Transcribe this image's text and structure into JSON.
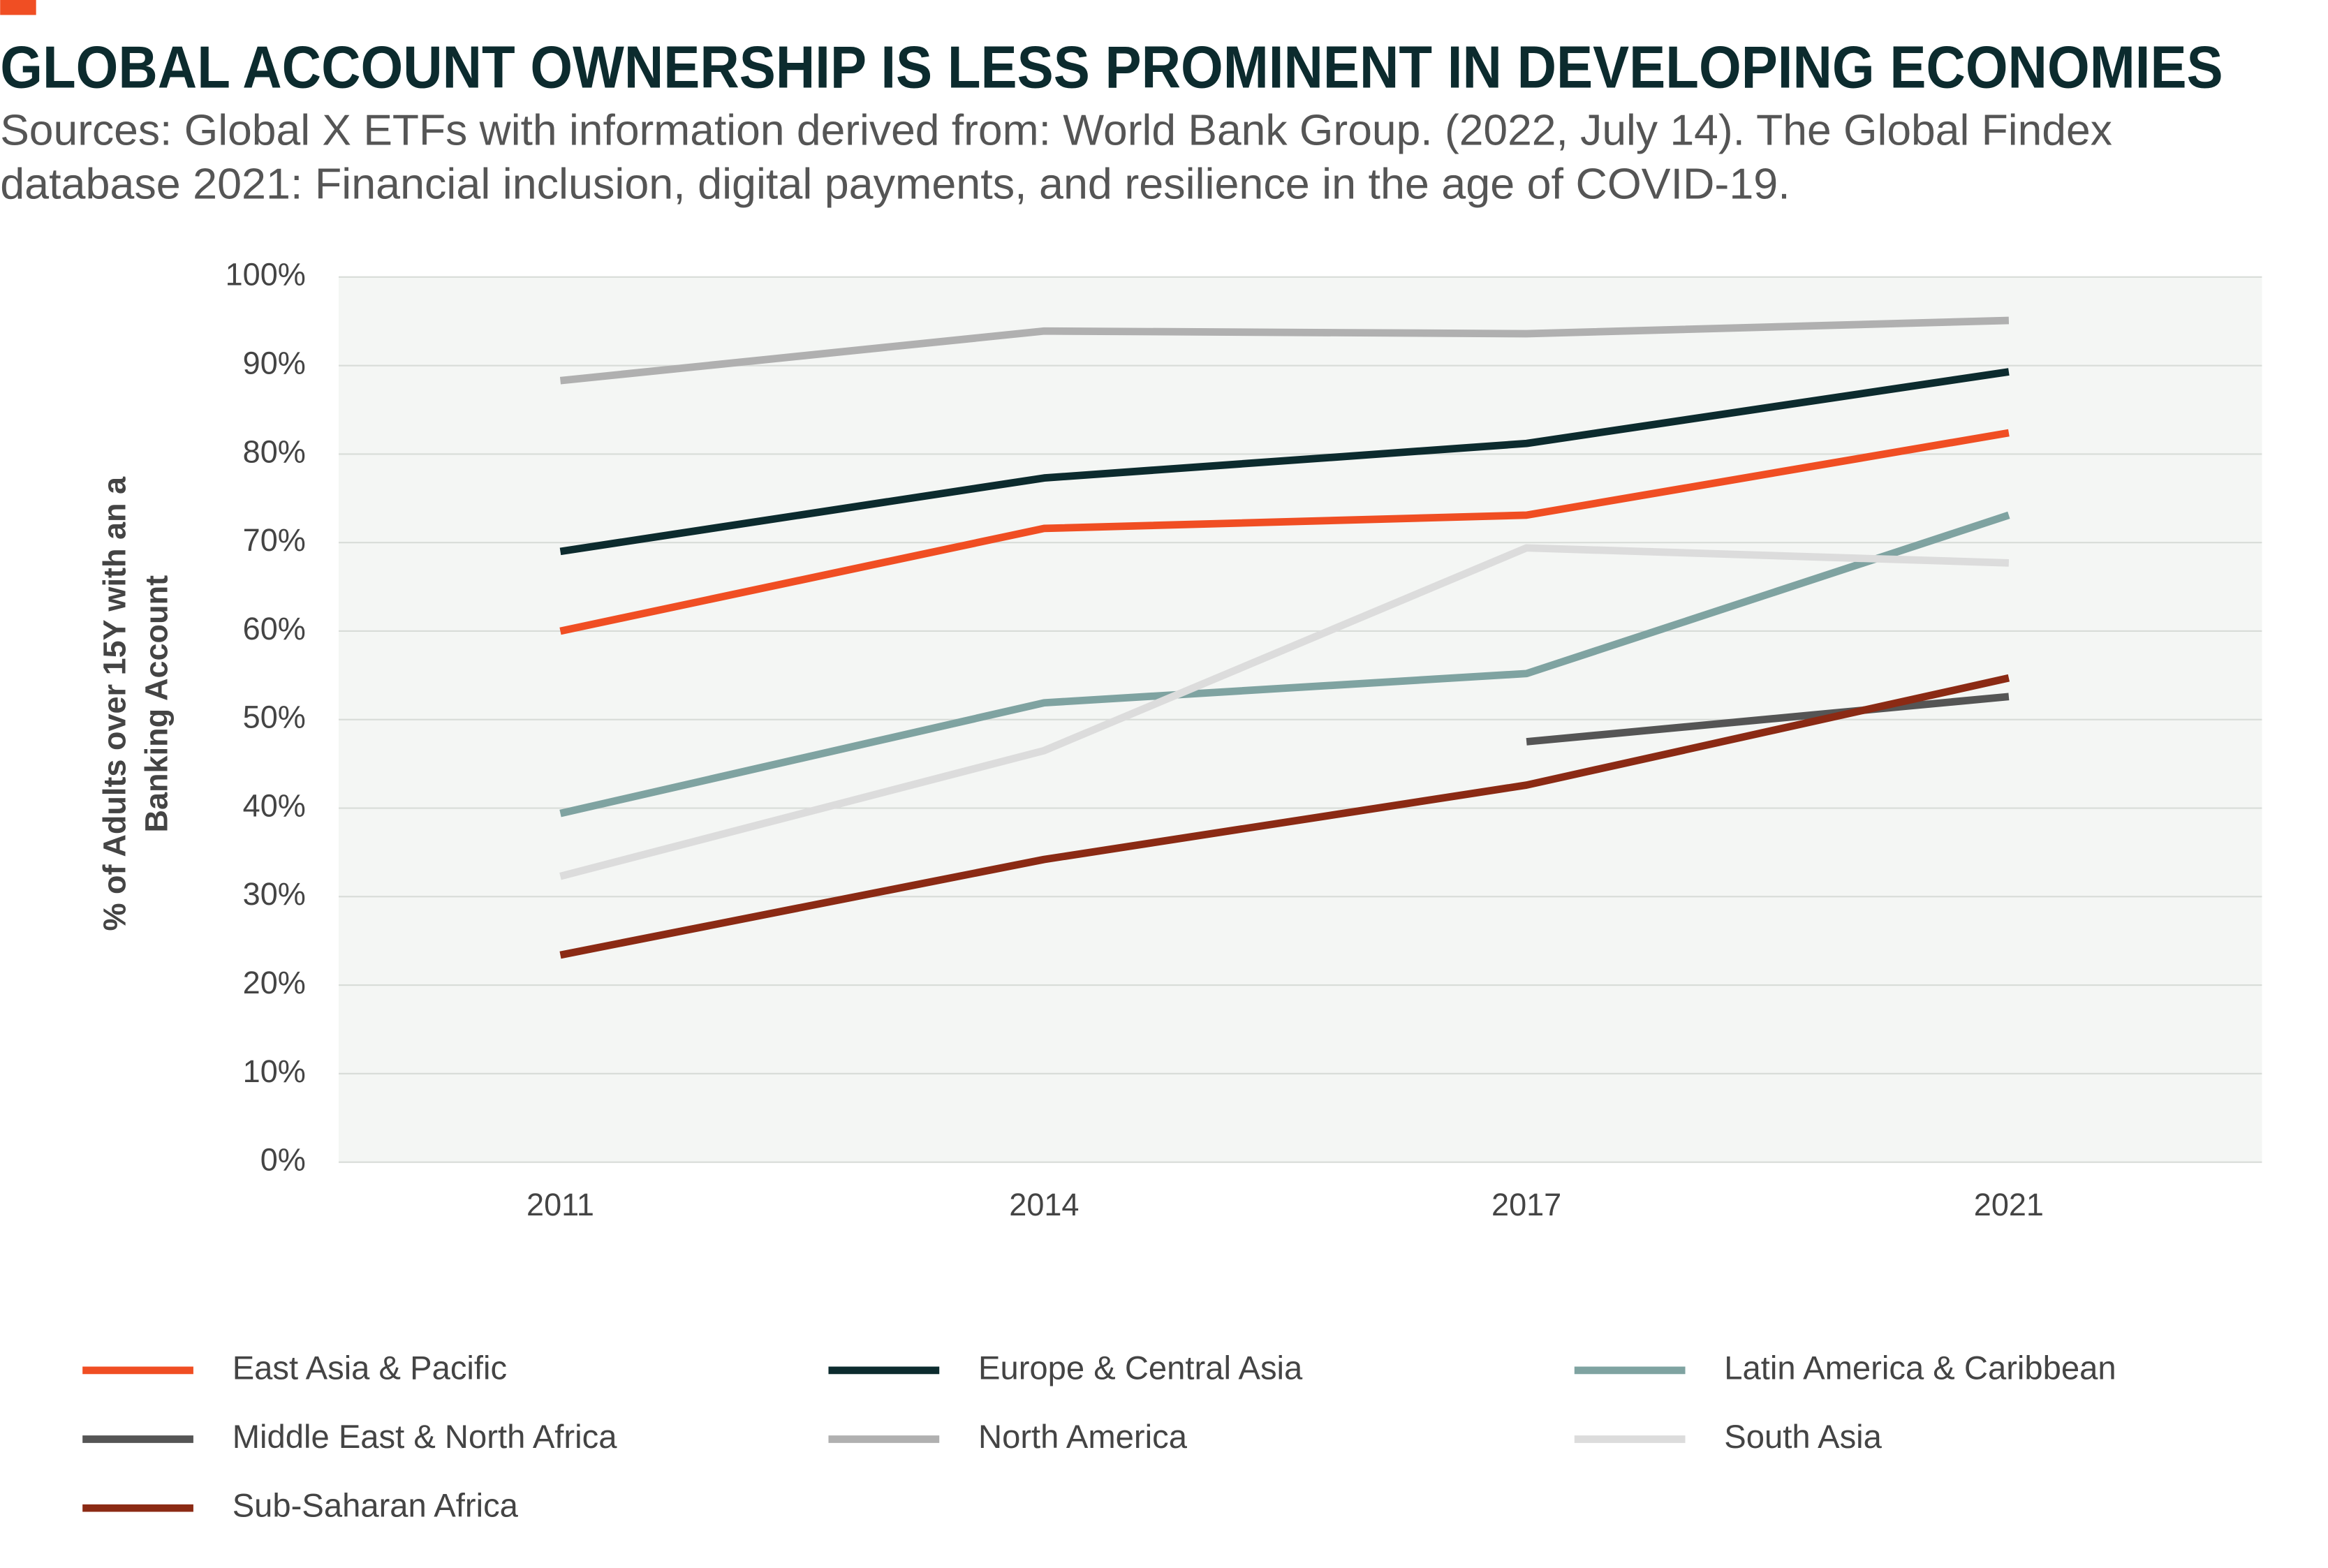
{
  "chart_data": {
    "type": "line",
    "title": "GLOBAL ACCOUNT OWNERSHIP IS LESS PROMINENT IN DEVELOPING ECONOMIES",
    "subtitle": [
      "Sources: Global X ETFs with information derived from: World Bank Group. (2022, July 14). The Global Findex",
      "database 2021: Financial inclusion, digital payments, and resilience in the age of COVID-19."
    ],
    "y_label": [
      "% of Adults over 15Y with an a",
      "Banking Account"
    ],
    "categories": [
      "2011",
      "2014",
      "2017",
      "2021"
    ],
    "ylim": [
      0,
      100
    ],
    "yticks": [
      {
        "value": 0,
        "label": "0%"
      },
      {
        "value": 10,
        "label": "10%"
      },
      {
        "value": 20,
        "label": "20%"
      },
      {
        "value": 30,
        "label": "30%"
      },
      {
        "value": 40,
        "label": "40%"
      },
      {
        "value": 50,
        "label": "50%"
      },
      {
        "value": 60,
        "label": "60%"
      },
      {
        "value": 70,
        "label": "70%"
      },
      {
        "value": 80,
        "label": "80%"
      },
      {
        "value": 90,
        "label": "90%"
      },
      {
        "value": 100,
        "label": "100%"
      }
    ],
    "grid": true,
    "legend": "bottom",
    "series": [
      {
        "name": "East Asia & Pacific",
        "color": "#f04e23",
        "values": [
          60,
          71.6,
          73.1,
          82.4
        ]
      },
      {
        "name": "Europe & Central Asia",
        "color": "#0c2b2e",
        "values": [
          69,
          77.3,
          81.2,
          89.3
        ]
      },
      {
        "name": "Latin America & Caribbean",
        "color": "#7fa3a1",
        "values": [
          39.4,
          51.9,
          55.2,
          73.1
        ]
      },
      {
        "name": "Middle East & North Africa",
        "color": "#555555",
        "values": [
          null,
          null,
          47.5,
          52.6
        ]
      },
      {
        "name": "North America",
        "color": "#b0b0b0",
        "values": [
          88.3,
          93.9,
          93.6,
          95.1
        ]
      },
      {
        "name": "South Asia",
        "color": "#dcdcdc",
        "values": [
          32.3,
          46.5,
          69.4,
          67.7
        ]
      },
      {
        "name": "Sub-Saharan Africa",
        "color": "#8b2a14",
        "values": [
          23.4,
          34.2,
          42.6,
          54.7
        ]
      }
    ]
  }
}
